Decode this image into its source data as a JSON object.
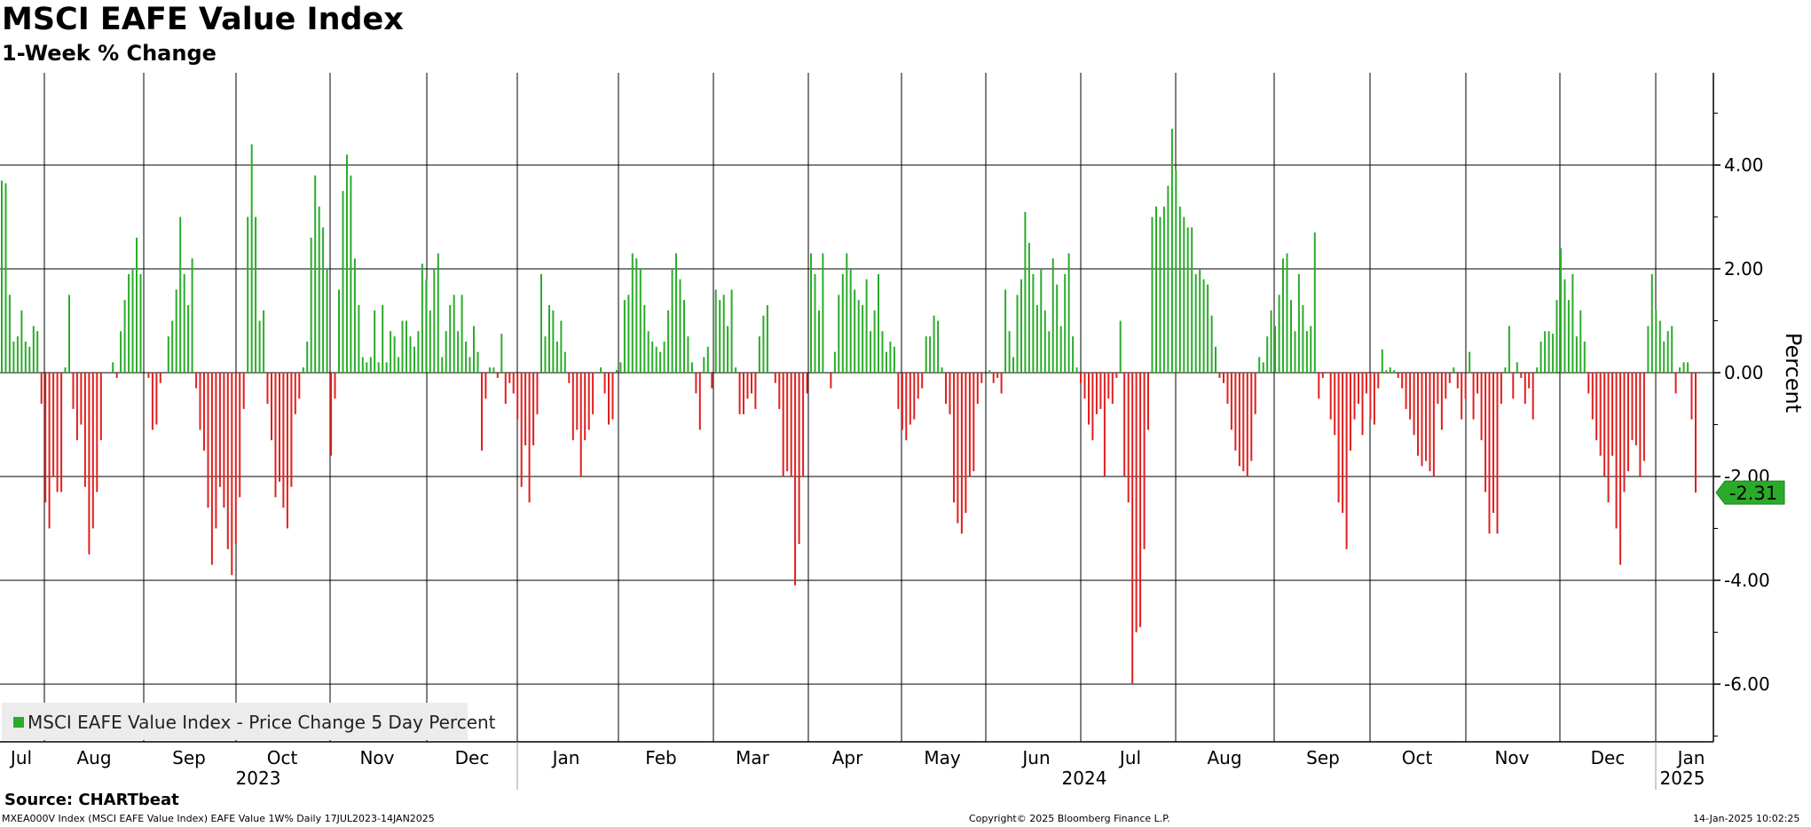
{
  "title": "MSCI EAFE Value Index",
  "subtitle": "1-Week % Change",
  "source": "Source: CHARTbeat",
  "footer": {
    "left": "MXEA000V Index (MSCI EAFE Value Index) EAFE Value 1W%  Daily 17JUL2023-14JAN2025",
    "center": "Copyright© 2025 Bloomberg Finance L.P.",
    "right": "14-Jan-2025 10:02:25"
  },
  "colors": {
    "positive": "#2aac2a",
    "negative": "#e02020",
    "grid": "#000000",
    "legend_bg": "#ececec"
  },
  "chart_data": {
    "type": "bar",
    "title": "MSCI EAFE Value Index",
    "subtitle": "1-Week % Change",
    "ylabel": "Percent",
    "ylim": [
      -7.1,
      5.75
    ],
    "yticks": [
      "4.00",
      "2.00",
      "0.00",
      "-2.00",
      "-4.00",
      "-6.00"
    ],
    "ytick_values": [
      4,
      2,
      0,
      -2,
      -4,
      -6
    ],
    "x_range": [
      "2023-07-17",
      "2025-01-14"
    ],
    "month_labels": [
      "Jul",
      "Aug",
      "Sep",
      "Oct",
      "Nov",
      "Dec",
      "Jan",
      "Feb",
      "Mar",
      "Apr",
      "May",
      "Jun",
      "Jul",
      "Aug",
      "Sep",
      "Oct",
      "Nov",
      "Dec",
      "Jan"
    ],
    "year_labels": [
      "2023",
      "2024",
      "2025"
    ],
    "grid": true,
    "legend": {
      "position": "bottom-left",
      "entries": [
        "MSCI EAFE Value Index - Price Change 5 Day Percent"
      ]
    },
    "last_value_label": "-2.31",
    "series": [
      {
        "name": "MSCI EAFE Value Index - Price Change 5 Day Percent",
        "values": [
          3.7,
          3.65,
          1.5,
          0.6,
          0.7,
          1.2,
          0.6,
          0.5,
          0.9,
          0.8,
          -0.6,
          -2.5,
          -3.0,
          -2.0,
          -2.3,
          -2.3,
          0.1,
          1.5,
          -0.7,
          -1.3,
          -1.0,
          -2.2,
          -3.5,
          -3.0,
          -2.3,
          -1.3,
          0,
          0,
          0.2,
          -0.1,
          0.8,
          1.4,
          1.9,
          2.0,
          2.6,
          1.9,
          0,
          -0.1,
          -1.1,
          -1.0,
          -0.2,
          0,
          0.7,
          1.0,
          1.6,
          3.0,
          1.9,
          1.3,
          2.2,
          -0.3,
          -1.1,
          -1.5,
          -2.6,
          -3.7,
          -3.0,
          -2.2,
          -2.6,
          -3.4,
          -3.9,
          -3.3,
          -2.4,
          -0.7,
          3.0,
          4.4,
          3.0,
          1.0,
          1.2,
          -0.6,
          -1.3,
          -2.4,
          -2.1,
          -2.6,
          -3.0,
          -2.2,
          -0.8,
          -0.5,
          0.1,
          0.6,
          2.6,
          3.8,
          3.2,
          2.8,
          2.0,
          -1.6,
          -0.5,
          1.6,
          3.5,
          4.2,
          3.8,
          2.2,
          1.3,
          0.3,
          0.2,
          0.3,
          1.2,
          0.2,
          1.3,
          0.2,
          0.8,
          0.7,
          0.3,
          1.0,
          1.0,
          0.7,
          0.5,
          0.8,
          2.1,
          1.8,
          1.2,
          2.0,
          2.3,
          0.3,
          0.8,
          1.3,
          1.5,
          0.8,
          1.5,
          0.6,
          0.3,
          0.9,
          0.4,
          -1.5,
          -0.5,
          0.1,
          0.1,
          -0.1,
          0.75,
          -0.6,
          -0.2,
          -0.4,
          -0.9,
          -2.2,
          -1.4,
          -2.5,
          -1.4,
          -0.8,
          1.9,
          0.7,
          1.3,
          1.2,
          0.6,
          1.0,
          0.4,
          -0.2,
          -1.3,
          -1.1,
          -2.0,
          -1.3,
          -1.1,
          -0.8,
          0,
          0.1,
          -0.4,
          -1.0,
          -0.9,
          0.05,
          0.2,
          1.4,
          1.5,
          2.3,
          2.2,
          2.0,
          1.3,
          0.8,
          0.6,
          0.5,
          0.4,
          0.6,
          1.2,
          2.0,
          2.3,
          1.8,
          1.4,
          0.7,
          0.2,
          -0.4,
          -1.1,
          0.3,
          0.5,
          -0.3,
          1.6,
          1.4,
          1.5,
          0.9,
          1.6,
          0.1,
          -0.8,
          -0.8,
          -0.5,
          -0.4,
          -0.7,
          0.7,
          1.1,
          1.3,
          0,
          -0.2,
          -0.7,
          -2.0,
          -1.9,
          -2.0,
          -4.1,
          -3.3,
          -2.0,
          -0.4,
          2.3,
          1.9,
          1.2,
          2.3,
          0,
          -0.3,
          0.4,
          1.5,
          1.9,
          2.3,
          2.0,
          1.6,
          1.4,
          1.3,
          1.8,
          0.8,
          1.2,
          1.9,
          0.8,
          0.4,
          0.6,
          0.5,
          -0.7,
          -1.1,
          -1.3,
          -1.0,
          -0.9,
          -0.5,
          -0.3,
          0.7,
          0.7,
          1.1,
          1.0,
          0.1,
          -0.6,
          -0.8,
          -2.5,
          -2.9,
          -3.1,
          -2.7,
          -2.0,
          -1.9,
          -0.6,
          -0.2,
          0,
          0.05,
          -0.2,
          -0.1,
          -0.4,
          1.6,
          0.8,
          0.3,
          1.5,
          1.8,
          3.1,
          2.5,
          1.9,
          1.3,
          2.0,
          1.2,
          0.8,
          2.2,
          1.7,
          0.9,
          1.9,
          2.3,
          0.7,
          0.1,
          -0.2,
          -0.5,
          -1.0,
          -1.3,
          -0.8,
          -0.7,
          -2.0,
          -0.5,
          -0.6,
          -0.1,
          1.0,
          -2.0,
          -2.5,
          -6.0,
          -5.0,
          -4.9,
          -3.4,
          -1.1,
          3.0,
          3.2,
          3.0,
          3.2,
          3.6,
          4.7,
          3.9,
          3.2,
          3.0,
          2.8,
          2.8,
          1.9,
          2.0,
          1.8,
          1.7,
          1.1,
          0.5,
          -0.1,
          -0.2,
          -0.6,
          -1.1,
          -1.5,
          -1.8,
          -1.9,
          -2.0,
          -1.7,
          -0.8,
          0.3,
          0.2,
          0.7,
          1.2,
          0.9,
          1.5,
          2.2,
          2.3,
          1.4,
          0.8,
          1.9,
          1.3,
          0.8,
          0.9,
          2.7,
          -0.5,
          -0.1,
          0,
          -0.9,
          -1.2,
          -2.5,
          -2.7,
          -3.4,
          -1.5,
          -0.9,
          -0.6,
          -1.2,
          -0.4,
          -0.9,
          -1.0,
          -0.3,
          0.45,
          0.05,
          0.1,
          0.05,
          -0.1,
          -0.3,
          -0.7,
          -0.9,
          -1.2,
          -1.6,
          -1.8,
          -1.7,
          -1.9,
          -2.0,
          -0.6,
          -1.1,
          -0.5,
          -0.2,
          0.1,
          -0.3,
          -0.9,
          -0.5,
          0.4,
          -0.9,
          -0.4,
          -1.3,
          -2.3,
          -3.1,
          -2.7,
          -3.1,
          -0.6,
          0.1,
          0.9,
          -0.5,
          0.2,
          -0.1,
          -0.6,
          -0.3,
          -0.9,
          0.1,
          0.6,
          0.8,
          0.8,
          0.75,
          1.4,
          2.4,
          1.8,
          1.4,
          1.9,
          0.7,
          1.2,
          0.6,
          -0.4,
          -0.9,
          -1.3,
          -1.6,
          -2.0,
          -2.5,
          -1.6,
          -3.0,
          -3.7,
          -2.3,
          -1.9,
          -1.3,
          -1.4,
          -2.0,
          -1.7,
          0.9,
          1.9,
          1.2,
          1.0,
          0.6,
          0.8,
          0.9,
          -0.4,
          0.1,
          0.2,
          0.2,
          -0.9,
          -2.31
        ]
      }
    ]
  }
}
